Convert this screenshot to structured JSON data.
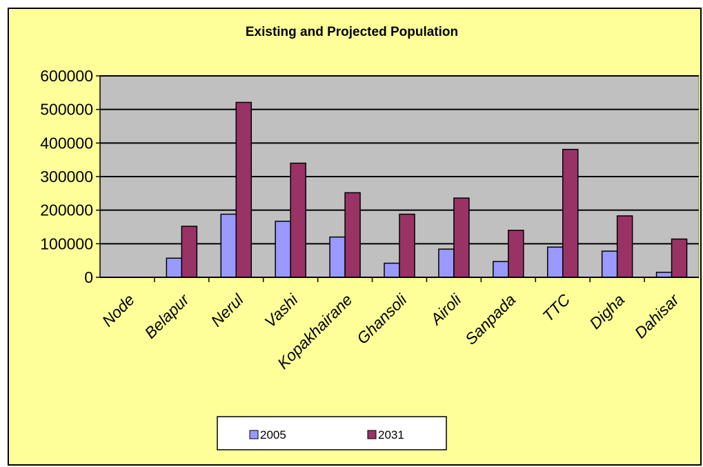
{
  "chart_data": {
    "type": "bar",
    "title": "Existing and Projected Population",
    "xlabel": "",
    "ylabel": "",
    "categories": [
      "Node",
      "Belapur",
      "Nerul",
      "Vashi",
      "Kopakhairane",
      "Ghansoli",
      "Airoli",
      "Sanpada",
      "TTC",
      "Digha",
      "Dahisar"
    ],
    "series": [
      {
        "name": "2005",
        "values": [
          0,
          57000,
          188000,
          167000,
          120000,
          42000,
          84000,
          47000,
          90000,
          78000,
          15000
        ]
      },
      {
        "name": "2031",
        "values": [
          0,
          152000,
          521000,
          340000,
          252000,
          188000,
          236000,
          140000,
          381000,
          183000,
          114000
        ]
      }
    ],
    "ylim": [
      0,
      600000
    ],
    "yticks": [
      "0",
      "100000",
      "200000",
      "300000",
      "400000",
      "500000",
      "600000"
    ],
    "grid": true,
    "legend_position": "bottom",
    "colors": {
      "background": "#ffff99",
      "plot_area": "#c0c0c0",
      "series_2005": "#9999ff",
      "series_2031": "#993366"
    }
  }
}
